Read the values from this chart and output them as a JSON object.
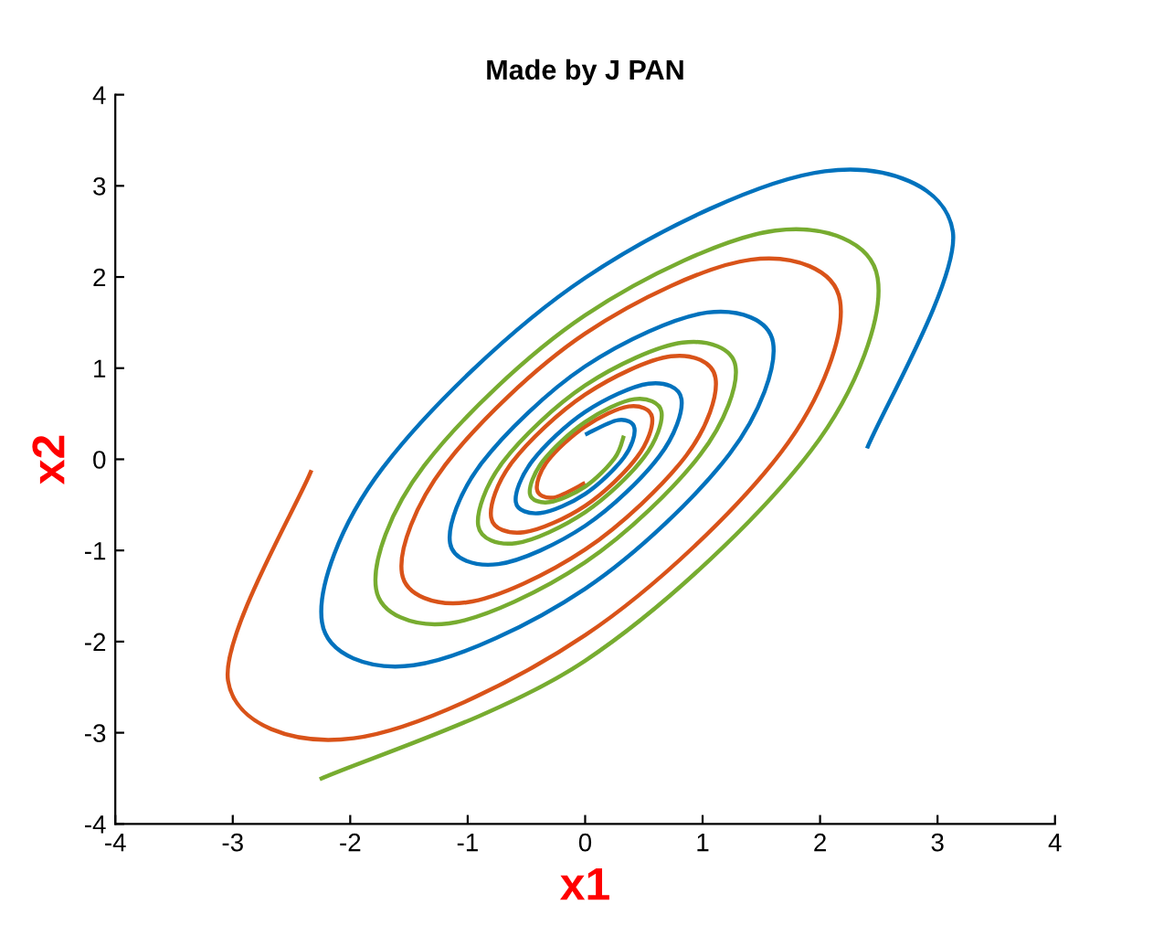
{
  "chart_data": {
    "type": "line",
    "title": "Made by J PAN",
    "xlabel": "x1",
    "ylabel": "x2",
    "xlim": [
      -4,
      4
    ],
    "xticks": [
      -4,
      -3,
      -2,
      -1,
      0,
      1,
      2,
      3,
      4
    ],
    "ylim": [
      -4,
      4
    ],
    "yticks": [
      -4,
      -3,
      -2,
      -1,
      0,
      1,
      2,
      3,
      4
    ],
    "grid": false,
    "marker": "none",
    "line_style": "solid",
    "series": [
      {
        "color": "#0072bd",
        "x": [
          2.4,
          3.13,
          2.04,
          0,
          -1.72,
          -2.24,
          -1.46,
          0,
          1.23,
          1.6,
          1.04,
          0,
          -0.88,
          -1.15,
          -0.74,
          0,
          0.63,
          0.82,
          0.54,
          0,
          -0.45,
          -0.59,
          -0.38,
          0,
          0.33,
          0.42,
          0.28,
          0
        ],
        "values": [
          0.12,
          2.5,
          3.16,
          1.99,
          -0.09,
          -1.79,
          -2.26,
          -1.42,
          0.06,
          1.28,
          1.61,
          1.02,
          -0.04,
          -0.92,
          -1.15,
          -0.73,
          0.03,
          0.66,
          0.83,
          0.52,
          -0.02,
          -0.47,
          -0.59,
          -0.38,
          0.02,
          0.34,
          0.43,
          0.27
        ]
      },
      {
        "color": "#d95319",
        "x": [
          -2.33,
          -3.04,
          -1.97,
          0,
          1.67,
          2.17,
          1.41,
          0,
          -1.19,
          -1.56,
          -1.01,
          0,
          0.86,
          1.11,
          0.73,
          0,
          -0.62,
          -0.8,
          -0.52,
          0,
          0.44,
          0.57,
          0.37,
          0,
          -0.32,
          -0.41,
          -0.27,
          0
        ],
        "values": [
          -0.12,
          -2.43,
          -3.06,
          -1.93,
          0.08,
          1.74,
          2.19,
          1.38,
          -0.06,
          -1.25,
          -1.57,
          -0.99,
          0.04,
          0.89,
          1.13,
          0.71,
          -0.03,
          -0.64,
          -0.8,
          -0.51,
          0.02,
          0.46,
          0.58,
          0.36,
          -0.02,
          -0.33,
          -0.42,
          -0.26
        ]
      },
      {
        "color": "#77ac30",
        "x": [
          -2.26,
          0,
          1.92,
          2.49,
          1.62,
          0,
          -1.37,
          -1.78,
          -1.16,
          0,
          0.98,
          1.28,
          0.83,
          0,
          -0.7,
          -0.91,
          -0.59,
          0,
          0.5,
          0.65,
          0.42,
          0,
          -0.36,
          -0.47,
          -0.3,
          0,
          0.25,
          0.33
        ],
        "values": [
          -3.51,
          -2.21,
          0.09,
          1.99,
          2.51,
          1.58,
          -0.07,
          -1.42,
          -1.8,
          -1.13,
          0.05,
          1.02,
          1.28,
          0.81,
          -0.03,
          -0.73,
          -0.92,
          -0.58,
          0.02,
          0.52,
          0.66,
          0.41,
          -0.02,
          -0.38,
          -0.47,
          -0.3,
          0.01,
          0.26
        ]
      }
    ]
  }
}
